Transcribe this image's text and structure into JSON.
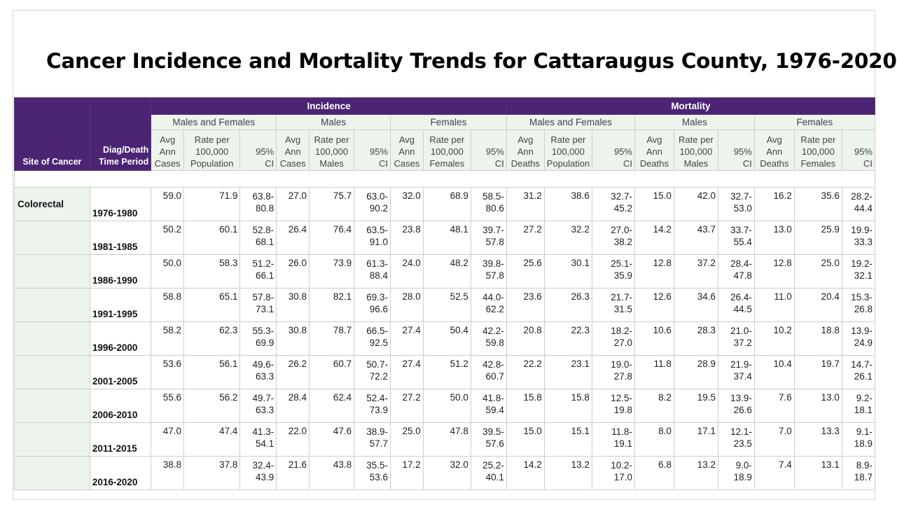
{
  "title": "Cancer Incidence and Mortality Trends for Cattaraugus County, 1976-2020",
  "headers": {
    "site": "Site of Cancer",
    "period_line1": "Diag/Death",
    "period_line2": "Time Period",
    "incidence": "Incidence",
    "mortality": "Mortality",
    "groups": [
      "Males and Females",
      "Males",
      "Females"
    ],
    "incidence_cols": [
      [
        "Avg",
        "Ann",
        "Cases"
      ],
      [
        "Rate per",
        "100,000",
        "Population"
      ],
      [
        "95%",
        "CI"
      ],
      [
        "Avg",
        "Ann",
        "Cases"
      ],
      [
        "Rate per",
        "100,000",
        "Males"
      ],
      [
        "95%",
        "CI"
      ],
      [
        "Avg",
        "Ann",
        "Cases"
      ],
      [
        "Rate per",
        "100,000",
        "Females"
      ],
      [
        "95%",
        "CI"
      ]
    ],
    "mortality_cols": [
      [
        "Avg",
        "Ann",
        "Deaths"
      ],
      [
        "Rate per",
        "100,000",
        "Population"
      ],
      [
        "95%",
        "CI"
      ],
      [
        "Avg",
        "Ann",
        "Deaths"
      ],
      [
        "Rate per",
        "100,000",
        "Males"
      ],
      [
        "95%",
        "CI"
      ],
      [
        "Avg",
        "Ann",
        "Deaths"
      ],
      [
        "Rate per",
        "100,000",
        "Females"
      ],
      [
        "95%",
        "CI"
      ]
    ]
  },
  "site": "Colorectal",
  "rows": [
    {
      "period": "1976-1980",
      "cells": [
        "59.0",
        "71.9",
        [
          "63.8-",
          "80.8"
        ],
        "27.0",
        "75.7",
        [
          "63.0-",
          "90.2"
        ],
        "32.0",
        "68.9",
        [
          "58.5-",
          "80.6"
        ],
        "31.2",
        "38.6",
        [
          "32.7-",
          "45.2"
        ],
        "15.0",
        "42.0",
        [
          "32.7-",
          "53.0"
        ],
        "16.2",
        "35.6",
        [
          "28.2-",
          "44.4"
        ]
      ]
    },
    {
      "period": "1981-1985",
      "cells": [
        "50.2",
        "60.1",
        [
          "52.8-",
          "68.1"
        ],
        "26.4",
        "76.4",
        [
          "63.5-",
          "91.0"
        ],
        "23.8",
        "48.1",
        [
          "39.7-",
          "57.8"
        ],
        "27.2",
        "32.2",
        [
          "27.0-",
          "38.2"
        ],
        "14.2",
        "43.7",
        [
          "33.7-",
          "55.4"
        ],
        "13.0",
        "25.9",
        [
          "19.9-",
          "33.3"
        ]
      ]
    },
    {
      "period": "1986-1990",
      "cells": [
        "50.0",
        "58.3",
        [
          "51.2-",
          "66.1"
        ],
        "26.0",
        "73.9",
        [
          "61.3-",
          "88.4"
        ],
        "24.0",
        "48.2",
        [
          "39.8-",
          "57.8"
        ],
        "25.6",
        "30.1",
        [
          "25.1-",
          "35.9"
        ],
        "12.8",
        "37.2",
        [
          "28.4-",
          "47.8"
        ],
        "12.8",
        "25.0",
        [
          "19.2-",
          "32.1"
        ]
      ]
    },
    {
      "period": "1991-1995",
      "cells": [
        "58.8",
        "65.1",
        [
          "57.8-",
          "73.1"
        ],
        "30.8",
        "82.1",
        [
          "69.3-",
          "96.6"
        ],
        "28.0",
        "52.5",
        [
          "44.0-",
          "62.2"
        ],
        "23.6",
        "26.3",
        [
          "21.7-",
          "31.5"
        ],
        "12.6",
        "34.6",
        [
          "26.4-",
          "44.5"
        ],
        "11.0",
        "20.4",
        [
          "15.3-",
          "26.8"
        ]
      ]
    },
    {
      "period": "1996-2000",
      "cells": [
        "58.2",
        "62.3",
        [
          "55.3-",
          "69.9"
        ],
        "30.8",
        "78.7",
        [
          "66.5-",
          "92.5"
        ],
        "27.4",
        "50.4",
        [
          "42.2-",
          "59.8"
        ],
        "20.8",
        "22.3",
        [
          "18.2-",
          "27.0"
        ],
        "10.6",
        "28.3",
        [
          "21.0-",
          "37.2"
        ],
        "10.2",
        "18.8",
        [
          "13.9-",
          "24.9"
        ]
      ]
    },
    {
      "period": "2001-2005",
      "cells": [
        "53.6",
        "56.1",
        [
          "49.6-",
          "63.3"
        ],
        "26.2",
        "60.7",
        [
          "50.7-",
          "72.2"
        ],
        "27.4",
        "51.2",
        [
          "42.8-",
          "60.7"
        ],
        "22.2",
        "23.1",
        [
          "19.0-",
          "27.8"
        ],
        "11.8",
        "28.9",
        [
          "21.9-",
          "37.4"
        ],
        "10.4",
        "19.7",
        [
          "14.7-",
          "26.1"
        ]
      ]
    },
    {
      "period": "2006-2010",
      "cells": [
        "55.6",
        "56.2",
        [
          "49.7-",
          "63.3"
        ],
        "28.4",
        "62.4",
        [
          "52.4-",
          "73.9"
        ],
        "27.2",
        "50.0",
        [
          "41.8-",
          "59.4"
        ],
        "15.8",
        "15.8",
        [
          "12.5-",
          "19.8"
        ],
        "8.2",
        "19.5",
        [
          "13.9-",
          "26.6"
        ],
        "7.6",
        "13.0",
        [
          "9.2-",
          "18.1"
        ]
      ]
    },
    {
      "period": "2011-2015",
      "cells": [
        "47.0",
        "47.4",
        [
          "41.3-",
          "54.1"
        ],
        "22.0",
        "47.6",
        [
          "38.9-",
          "57.7"
        ],
        "25.0",
        "47.8",
        [
          "39.5-",
          "57.6"
        ],
        "15.0",
        "15.1",
        [
          "11.8-",
          "19.1"
        ],
        "8.0",
        "17.1",
        [
          "12.1-",
          "23.5"
        ],
        "7.0",
        "13.3",
        [
          "9.1-",
          "18.9"
        ]
      ]
    },
    {
      "period": "2016-2020",
      "cells": [
        "38.8",
        "37.8",
        [
          "32.4-",
          "43.9"
        ],
        "21.6",
        "43.8",
        [
          "35.5-",
          "53.6"
        ],
        "17.2",
        "32.0",
        [
          "25.2-",
          "40.1"
        ],
        "14.2",
        "13.2",
        [
          "10.2-",
          "17.0"
        ],
        "6.8",
        "13.2",
        [
          "9.0-",
          "18.9"
        ],
        "7.4",
        "13.1",
        [
          "8.9-",
          "18.7"
        ]
      ]
    }
  ]
}
